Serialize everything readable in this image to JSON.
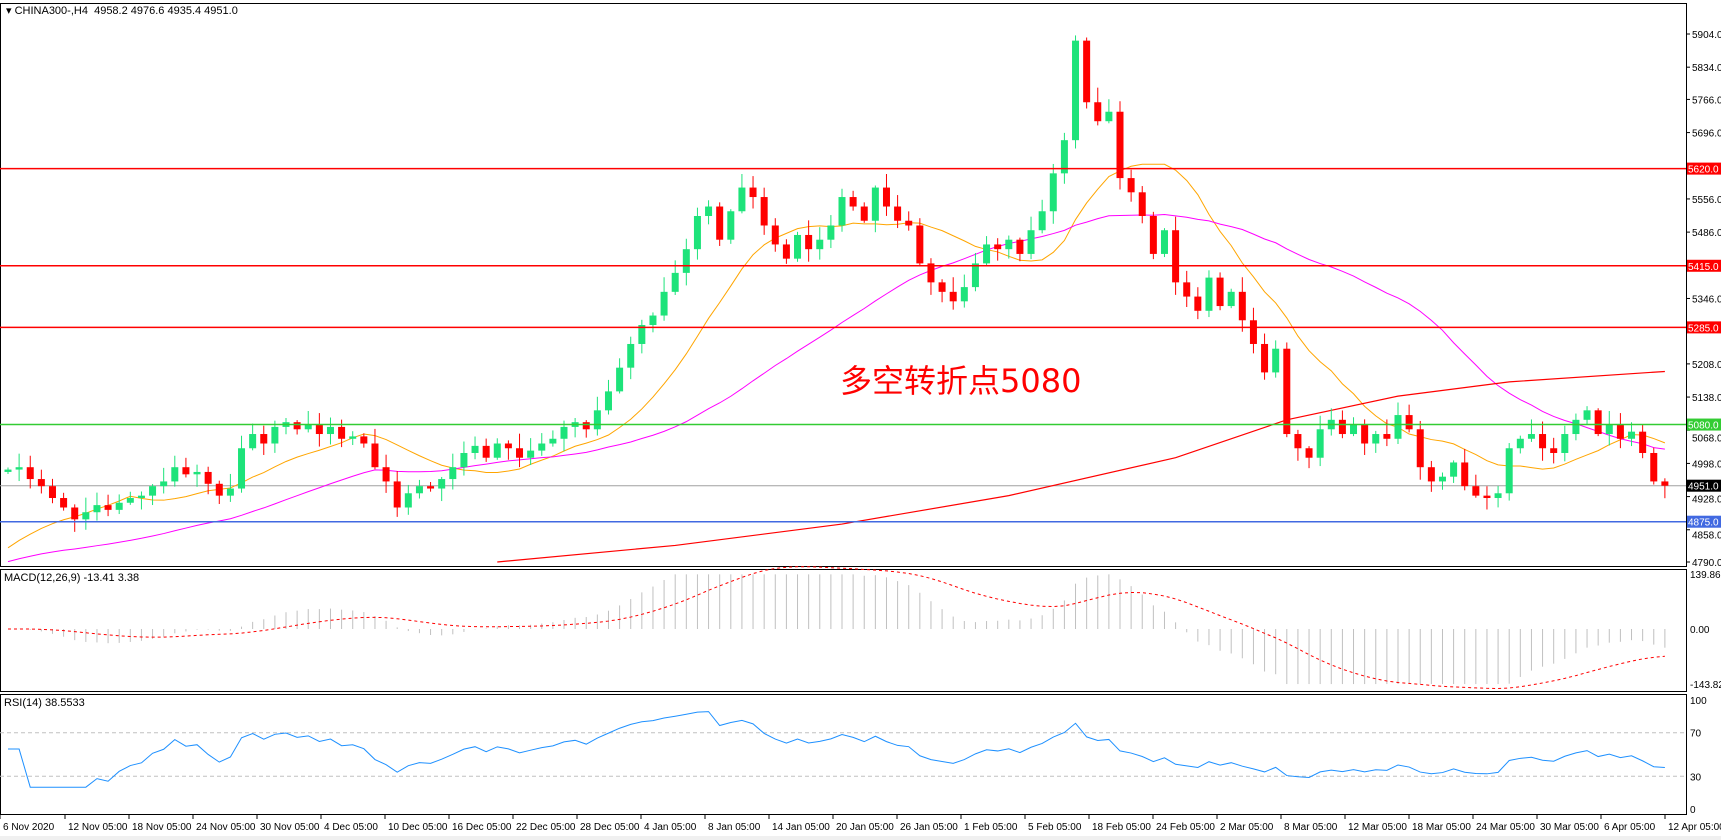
{
  "header": {
    "symbol": "CHINA300-,H4",
    "ohlc": "4958.2 4976.6 4935.4 4951.0"
  },
  "annotation": "多空转折点5080",
  "indicators": {
    "macd_label": "MACD(12,26,9) -13.41 3.38",
    "rsi_label": "RSI(14) 38.5533"
  },
  "colors": {
    "bull": "#1de37a",
    "bear": "#ff0000",
    "ma_fast": "#ffa500",
    "ma_mid": "#ff00ff",
    "ma_slow": "#ff0000",
    "resistance": "#ff0000",
    "pivot": "#33cc33",
    "support": "#4169e1",
    "rsi": "#1e90ff",
    "macd_signal": "#ff0000",
    "macd_hist": "#c0c0c0"
  },
  "chart_data": {
    "type": "candlestick",
    "price_axis": {
      "ylim": [
        4790,
        5904
      ],
      "ticks": [
        5904,
        5834,
        5766,
        5696,
        5556,
        5486,
        5346,
        5208,
        5138,
        5068,
        4998,
        4928,
        4858,
        4790
      ]
    },
    "time_axis": [
      "6 Nov 2020",
      "12 Nov 05:00",
      "18 Nov 05:00",
      "24 Nov 05:00",
      "30 Nov 05:00",
      "4 Dec 05:00",
      "10 Dec 05:00",
      "16 Dec 05:00",
      "22 Dec 05:00",
      "28 Dec 05:00",
      "4 Jan 05:00",
      "8 Jan 05:00",
      "14 Jan 05:00",
      "20 Jan 05:00",
      "26 Jan 05:00",
      "1 Feb 05:00",
      "5 Feb 05:00",
      "18 Feb 05:00",
      "24 Feb 05:00",
      "2 Mar 05:00",
      "8 Mar 05:00",
      "12 Mar 05:00",
      "18 Mar 05:00",
      "24 Mar 05:00",
      "30 Mar 05:00",
      "6 Apr 05:00",
      "12 Apr 05:00"
    ],
    "closes": [
      4985,
      4990,
      4965,
      4950,
      4925,
      4905,
      4880,
      4895,
      4910,
      4900,
      4915,
      4925,
      4930,
      4950,
      4960,
      4990,
      4975,
      4980,
      4955,
      4930,
      4945,
      5030,
      5060,
      5040,
      5075,
      5085,
      5070,
      5080,
      5060,
      5075,
      5050,
      5055,
      5040,
      4990,
      4960,
      4905,
      4935,
      4950,
      4945,
      4965,
      4990,
      5020,
      5035,
      5010,
      5040,
      5030,
      5010,
      5025,
      5040,
      5050,
      5075,
      5085,
      5070,
      5110,
      5150,
      5200,
      5250,
      5290,
      5310,
      5360,
      5400,
      5450,
      5520,
      5540,
      5470,
      5530,
      5580,
      5560,
      5500,
      5460,
      5430,
      5480,
      5450,
      5470,
      5500,
      5560,
      5540,
      5510,
      5580,
      5540,
      5510,
      5500,
      5420,
      5380,
      5360,
      5340,
      5370,
      5420,
      5460,
      5450,
      5470,
      5440,
      5490,
      5530,
      5610,
      5680,
      5890,
      5760,
      5720,
      5740,
      5600,
      5570,
      5520,
      5440,
      5490,
      5380,
      5350,
      5320,
      5390,
      5330,
      5360,
      5300,
      5250,
      5190,
      5240,
      5060,
      5030,
      5010,
      5070,
      5090,
      5060,
      5080,
      5040,
      5060,
      5050,
      5100,
      5070,
      4990,
      4960,
      4970,
      5000,
      4950,
      4930,
      4925,
      4935,
      5030,
      5050,
      5060,
      5030,
      5020,
      5060,
      5090,
      5110,
      5060,
      5080,
      5050,
      5065,
      5020,
      4960,
      4951
    ],
    "ma_slow_points": [
      [
        44,
        4790
      ],
      [
        60,
        4825
      ],
      [
        75,
        4870
      ],
      [
        90,
        4930
      ],
      [
        105,
        5010
      ],
      [
        115,
        5090
      ],
      [
        125,
        5140
      ],
      [
        135,
        5170
      ],
      [
        149,
        5192
      ]
    ],
    "levels": [
      {
        "price": 5620,
        "label": "5620.0",
        "kind": "resistance"
      },
      {
        "price": 5415,
        "label": "5415.0",
        "kind": "resistance"
      },
      {
        "price": 5285,
        "label": "5285.0",
        "kind": "resistance"
      },
      {
        "price": 5080,
        "label": "5080.0",
        "kind": "pivot"
      },
      {
        "price": 4875,
        "label": "4875.0",
        "kind": "support"
      }
    ],
    "current_price": {
      "price": 4951,
      "label": "4951.0"
    },
    "macd": {
      "ylim": [
        -143.82,
        139.86
      ],
      "tick_labels": [
        "139.86",
        "0.00",
        "-143.82"
      ]
    },
    "rsi": {
      "ylim": [
        0,
        100
      ],
      "levels": [
        70,
        30
      ],
      "tick_labels": [
        "100",
        "70",
        "30",
        "0"
      ]
    }
  }
}
